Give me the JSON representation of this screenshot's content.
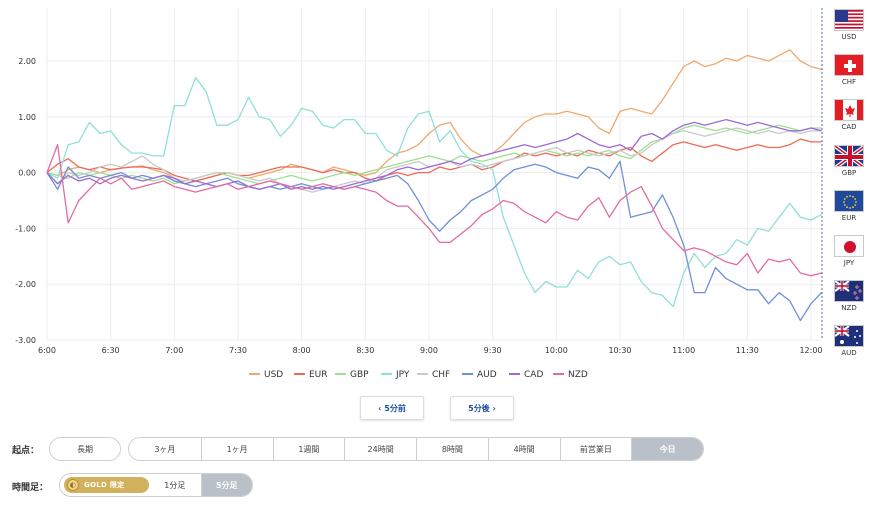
{
  "chart_data": {
    "type": "line",
    "x": [
      "6:00",
      "6:05",
      "6:10",
      "6:15",
      "6:20",
      "6:25",
      "6:30",
      "6:35",
      "6:40",
      "6:45",
      "6:50",
      "6:55",
      "7:00",
      "7:05",
      "7:10",
      "7:15",
      "7:20",
      "7:25",
      "7:30",
      "7:35",
      "7:40",
      "7:45",
      "7:50",
      "7:55",
      "8:00",
      "8:05",
      "8:10",
      "8:15",
      "8:20",
      "8:25",
      "8:30",
      "8:35",
      "8:40",
      "8:45",
      "8:50",
      "8:55",
      "9:00",
      "9:05",
      "9:10",
      "9:15",
      "9:20",
      "9:25",
      "9:30",
      "9:35",
      "9:40",
      "9:45",
      "9:50",
      "9:55",
      "10:00",
      "10:05",
      "10:10",
      "10:15",
      "10:20",
      "10:25",
      "10:30",
      "10:35",
      "10:40",
      "10:45",
      "10:50",
      "10:55",
      "11:00",
      "11:05",
      "11:10",
      "11:15",
      "11:20",
      "11:25",
      "11:30",
      "11:35",
      "11:40",
      "11:45",
      "11:50",
      "11:55",
      "12:00",
      "12:05"
    ],
    "xticks": [
      "6:00",
      "6:30",
      "7:00",
      "7:30",
      "8:00",
      "8:30",
      "9:00",
      "9:30",
      "10:00",
      "10:30",
      "11:00",
      "11:30",
      "12:00"
    ],
    "yticks": [
      "2.00",
      "1.00",
      "0.00",
      "-1.00",
      "-2.00",
      "-3.00"
    ],
    "ylim": [
      -3.0,
      2.95
    ],
    "grid": true,
    "legend_position": "bottom",
    "series": [
      {
        "name": "USD",
        "color": "#f0a86e",
        "values": [
          0,
          -0.05,
          0.05,
          0.1,
          0.05,
          0,
          0.05,
          0.08,
          0.1,
          0.12,
          0.05,
          0,
          -0.1,
          -0.2,
          -0.15,
          -0.1,
          -0.05,
          0,
          -0.05,
          -0.1,
          -0.05,
          0,
          0.05,
          0.15,
          0.1,
          0.05,
          0,
          0.1,
          0.05,
          0,
          -0.05,
          0,
          0.2,
          0.35,
          0.4,
          0.5,
          0.7,
          0.85,
          0.9,
          0.6,
          0.4,
          0.3,
          0.35,
          0.5,
          0.7,
          0.9,
          1.0,
          1.05,
          1.05,
          1.1,
          1.05,
          1.0,
          0.8,
          0.7,
          1.1,
          1.15,
          1.1,
          1.05,
          1.3,
          1.6,
          1.9,
          2.0,
          1.9,
          1.95,
          2.05,
          2.0,
          2.1,
          2.05,
          2.0,
          2.1,
          2.2,
          2.0,
          1.9,
          1.85
        ]
      },
      {
        "name": "EUR",
        "color": "#ec6a56",
        "values": [
          0,
          0.15,
          0.25,
          0.1,
          0.05,
          0.1,
          0.05,
          0.08,
          0.1,
          0.1,
          0.08,
          0.05,
          -0.05,
          -0.1,
          -0.15,
          -0.1,
          -0.05,
          0,
          -0.05,
          -0.05,
          0,
          0.05,
          0.1,
          0.1,
          0.1,
          0.05,
          0,
          0.05,
          0,
          0,
          -0.1,
          -0.15,
          -0.05,
          0,
          -0.05,
          0,
          0,
          0.1,
          0.05,
          0.1,
          0.15,
          0.05,
          0.1,
          0.2,
          0.25,
          0.35,
          0.3,
          0.35,
          0.3,
          0.35,
          0.3,
          0.4,
          0.35,
          0.3,
          0.4,
          0.45,
          0.3,
          0.2,
          0.35,
          0.5,
          0.55,
          0.5,
          0.45,
          0.5,
          0.45,
          0.4,
          0.45,
          0.5,
          0.45,
          0.45,
          0.5,
          0.6,
          0.55,
          0.55
        ]
      },
      {
        "name": "GBP",
        "color": "#9ee08f",
        "values": [
          0,
          -0.05,
          -0.1,
          0,
          -0.05,
          0,
          -0.05,
          -0.1,
          -0.05,
          -0.1,
          -0.15,
          -0.1,
          -0.2,
          -0.15,
          -0.1,
          -0.05,
          0,
          -0.05,
          -0.1,
          -0.15,
          -0.2,
          -0.15,
          -0.1,
          -0.05,
          -0.1,
          -0.15,
          -0.1,
          -0.05,
          0,
          -0.05,
          0,
          0.05,
          0.1,
          0.15,
          0.2,
          0.25,
          0.3,
          0.25,
          0.2,
          0.3,
          0.25,
          0.2,
          0.25,
          0.3,
          0.35,
          0.3,
          0.35,
          0.4,
          0.35,
          0.3,
          0.35,
          0.3,
          0.35,
          0.4,
          0.3,
          0.25,
          0.4,
          0.55,
          0.6,
          0.7,
          0.8,
          0.85,
          0.8,
          0.75,
          0.8,
          0.75,
          0.7,
          0.75,
          0.8,
          0.85,
          0.8,
          0.75,
          0.8,
          0.8
        ]
      },
      {
        "name": "JPY",
        "color": "#8fe0d6",
        "values": [
          0,
          -0.1,
          0.5,
          0.55,
          0.9,
          0.7,
          0.75,
          0.5,
          0.35,
          0.35,
          0.3,
          0.3,
          1.2,
          1.2,
          1.7,
          1.45,
          0.85,
          0.85,
          0.95,
          1.35,
          1.0,
          0.95,
          0.65,
          0.85,
          1.15,
          1.1,
          0.85,
          0.8,
          0.95,
          0.95,
          0.7,
          0.7,
          0.4,
          0.3,
          0.8,
          1.05,
          1.1,
          0.55,
          0.75,
          0.4,
          0.2,
          0.15,
          0.05,
          -0.8,
          -1.3,
          -1.8,
          -2.15,
          -1.95,
          -2.05,
          -2.05,
          -1.75,
          -1.9,
          -1.6,
          -1.5,
          -1.65,
          -1.6,
          -1.95,
          -2.15,
          -2.2,
          -2.4,
          -1.8,
          -1.45,
          -1.7,
          -1.5,
          -1.45,
          -1.2,
          -1.3,
          -1.0,
          -1.05,
          -0.8,
          -0.55,
          -0.8,
          -0.85,
          -0.75
        ]
      },
      {
        "name": "CHF",
        "color": "#c9c9c9",
        "values": [
          0,
          -0.2,
          0,
          -0.05,
          0,
          0.1,
          0.15,
          0.1,
          0.2,
          0.3,
          0.15,
          0.05,
          -0.1,
          -0.15,
          -0.1,
          -0.05,
          0,
          0,
          -0.05,
          -0.1,
          -0.15,
          -0.1,
          -0.2,
          -0.25,
          -0.3,
          -0.35,
          -0.3,
          -0.25,
          -0.2,
          -0.15,
          -0.2,
          -0.1,
          0.05,
          0.1,
          0.15,
          0.2,
          0.1,
          0.15,
          0.2,
          0.1,
          0.15,
          0.1,
          0.15,
          0.2,
          0.25,
          0.3,
          0.35,
          0.4,
          0.45,
          0.35,
          0.4,
          0.35,
          0.3,
          0.35,
          0.4,
          0.3,
          0.35,
          0.5,
          0.6,
          0.7,
          0.75,
          0.7,
          0.65,
          0.7,
          0.75,
          0.8,
          0.75,
          0.7,
          0.75,
          0.7,
          0.75,
          0.7,
          0.75,
          0.75
        ]
      },
      {
        "name": "AUD",
        "color": "#6f8fd6",
        "values": [
          0,
          -0.3,
          0.1,
          -0.1,
          -0.05,
          -0.1,
          -0.05,
          0,
          -0.1,
          -0.05,
          -0.1,
          -0.05,
          -0.15,
          -0.2,
          -0.25,
          -0.2,
          -0.15,
          -0.1,
          -0.2,
          -0.25,
          -0.3,
          -0.25,
          -0.3,
          -0.25,
          -0.2,
          -0.25,
          -0.3,
          -0.25,
          -0.3,
          -0.25,
          -0.2,
          -0.15,
          -0.1,
          -0.05,
          -0.2,
          -0.5,
          -0.85,
          -1.05,
          -0.85,
          -0.7,
          -0.5,
          -0.4,
          -0.3,
          -0.1,
          0.05,
          0.1,
          0.15,
          0.1,
          0,
          -0.05,
          -0.1,
          0.1,
          0.05,
          -0.1,
          0.2,
          -0.8,
          -0.75,
          -0.7,
          -0.4,
          -0.8,
          -1.3,
          -2.15,
          -2.15,
          -1.7,
          -1.9,
          -2.0,
          -2.1,
          -2.1,
          -2.35,
          -2.15,
          -2.3,
          -2.65,
          -2.35,
          -2.15
        ]
      },
      {
        "name": "CAD",
        "color": "#9b6ad8",
        "values": [
          0,
          -0.2,
          -0.05,
          -0.15,
          -0.1,
          -0.2,
          -0.1,
          -0.05,
          -0.1,
          -0.15,
          -0.1,
          -0.05,
          -0.1,
          -0.2,
          -0.15,
          -0.2,
          -0.25,
          -0.2,
          -0.15,
          -0.25,
          -0.3,
          -0.25,
          -0.2,
          -0.3,
          -0.25,
          -0.3,
          -0.25,
          -0.3,
          -0.25,
          -0.2,
          -0.15,
          -0.1,
          -0.05,
          0.05,
          0.1,
          0.05,
          0.1,
          0.15,
          0.2,
          0.15,
          0.25,
          0.3,
          0.35,
          0.4,
          0.45,
          0.5,
          0.45,
          0.5,
          0.55,
          0.6,
          0.7,
          0.6,
          0.5,
          0.45,
          0.5,
          0.4,
          0.65,
          0.7,
          0.6,
          0.75,
          0.85,
          0.9,
          0.85,
          0.9,
          0.95,
          0.9,
          0.85,
          0.9,
          0.85,
          0.8,
          0.75,
          0.75,
          0.8,
          0.75
        ]
      },
      {
        "name": "NZD",
        "color": "#e36aa2",
        "values": [
          0,
          0.5,
          -0.9,
          -0.5,
          -0.3,
          -0.1,
          -0.2,
          -0.1,
          -0.3,
          -0.25,
          -0.2,
          -0.15,
          -0.25,
          -0.3,
          -0.35,
          -0.3,
          -0.25,
          -0.2,
          -0.3,
          -0.25,
          -0.2,
          -0.15,
          -0.2,
          -0.25,
          -0.3,
          -0.25,
          -0.2,
          -0.25,
          -0.3,
          -0.25,
          -0.3,
          -0.35,
          -0.5,
          -0.6,
          -0.6,
          -0.8,
          -1.0,
          -1.25,
          -1.25,
          -1.1,
          -0.95,
          -0.75,
          -0.65,
          -0.5,
          -0.55,
          -0.7,
          -0.8,
          -0.9,
          -0.7,
          -0.8,
          -0.85,
          -0.6,
          -0.45,
          -0.8,
          -0.5,
          -0.35,
          -0.25,
          -0.6,
          -1.0,
          -1.2,
          -1.4,
          -1.35,
          -1.4,
          -1.5,
          -1.6,
          -1.65,
          -1.45,
          -1.8,
          -1.55,
          -1.6,
          -1.55,
          -1.8,
          -1.85,
          -1.8
        ]
      }
    ]
  },
  "flags": [
    {
      "code": "USD",
      "icon": "us-flag-icon"
    },
    {
      "code": "CHF",
      "icon": "swiss-flag-icon"
    },
    {
      "code": "CAD",
      "icon": "canada-flag-icon"
    },
    {
      "code": "GBP",
      "icon": "uk-flag-icon"
    },
    {
      "code": "EUR",
      "icon": "eu-flag-icon"
    },
    {
      "code": "JPY",
      "icon": "japan-flag-icon"
    },
    {
      "code": "NZD",
      "icon": "new-zealand-flag-icon"
    },
    {
      "code": "AUD",
      "icon": "australia-flag-icon"
    }
  ],
  "nav": {
    "prev_label": "‹ 5分前",
    "next_label": "5分後 ›"
  },
  "start_point": {
    "label": "起点：",
    "options": [
      "長期",
      "3ヶ月",
      "1ヶ月",
      "1週間",
      "24時間",
      "8時間",
      "4時間",
      "前営業日",
      "今日"
    ],
    "selected": "今日"
  },
  "timeframe": {
    "label": "時間足：",
    "gold_label": "GOLD 限定",
    "options": [
      "1分足",
      "5分足"
    ],
    "selected": "5分足"
  },
  "colors": {
    "accent": "#1d4e9c",
    "active_segment": "#b9c0c8",
    "gold": "#d2b15c",
    "grid": "#e8e8e8"
  }
}
